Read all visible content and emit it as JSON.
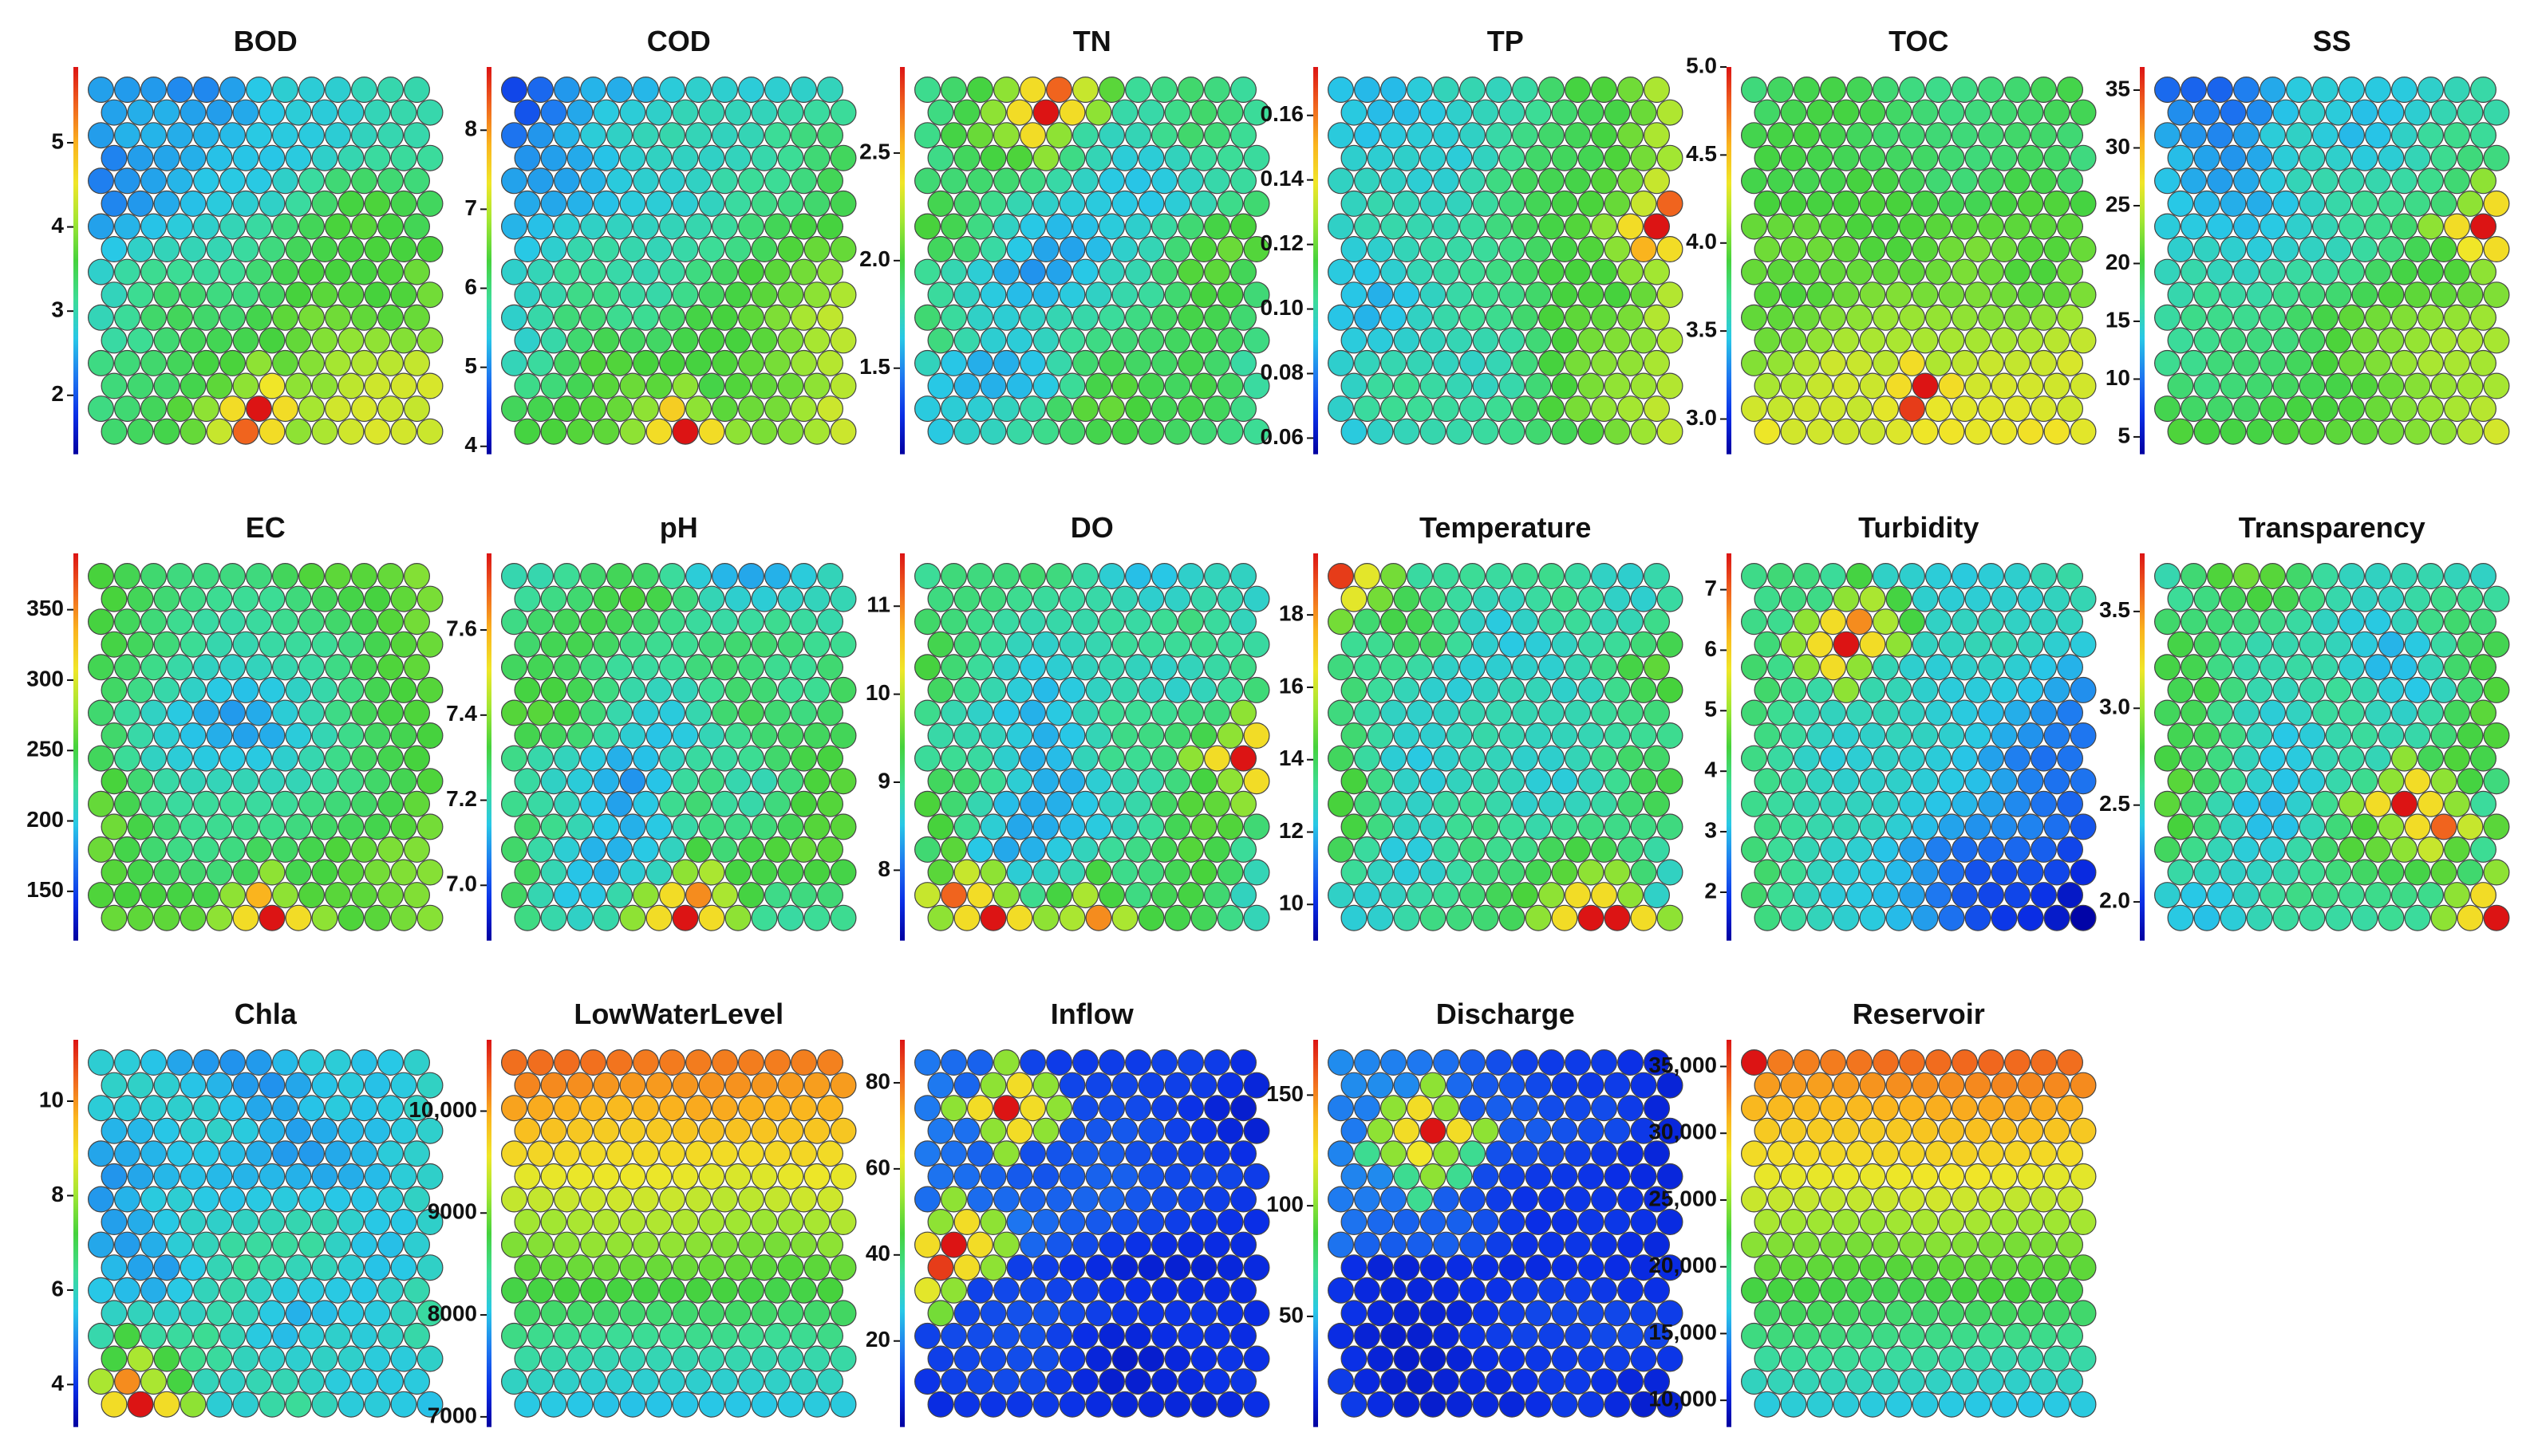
{
  "colormap": [
    "#0000a0",
    "#0a2ee6",
    "#1e78f0",
    "#28c8e6",
    "#3cdc96",
    "#46d23c",
    "#a0e632",
    "#f0e628",
    "#fab41e",
    "#f0641e",
    "#dc1414"
  ],
  "chart_data": [
    {
      "type": "heatmap",
      "title": "BOD",
      "ticks": [
        {
          "value": 2,
          "label": "2"
        },
        {
          "value": 3,
          "label": "3"
        },
        {
          "value": 4,
          "label": "4"
        },
        {
          "value": 5,
          "label": "5"
        }
      ],
      "range": [
        1.3,
        5.9
      ],
      "grid": {
        "rows": 16,
        "cols": 13
      },
      "pattern": "topleft-low",
      "hotspots": [
        {
          "row": 14,
          "col": 6,
          "level": 1.0
        },
        {
          "row": 15,
          "col": 5,
          "level": 0.9
        },
        {
          "row": 13,
          "col": 6,
          "level": 0.7
        }
      ]
    },
    {
      "type": "heatmap",
      "title": "COD",
      "ticks": [
        {
          "value": 4,
          "label": "4"
        },
        {
          "value": 5,
          "label": "5"
        },
        {
          "value": 6,
          "label": "6"
        },
        {
          "value": 7,
          "label": "7"
        },
        {
          "value": 8,
          "label": "8"
        }
      ],
      "range": [
        3.9,
        8.8
      ],
      "grid": {
        "rows": 16,
        "cols": 13
      },
      "pattern": "topleft-low",
      "hotspots": [
        {
          "row": 15,
          "col": 6,
          "level": 1.0
        },
        {
          "row": 14,
          "col": 6,
          "level": 0.75
        }
      ]
    },
    {
      "type": "heatmap",
      "title": "TN",
      "ticks": [
        {
          "value": 1.5,
          "label": "1.5"
        },
        {
          "value": 2.0,
          "label": "2.0"
        },
        {
          "value": 2.5,
          "label": "2.5"
        }
      ],
      "range": [
        1.1,
        2.9
      ],
      "grid": {
        "rows": 16,
        "cols": 13
      },
      "pattern": "mixed-mid",
      "hotspots": [
        {
          "row": 0,
          "col": 5,
          "level": 0.9
        },
        {
          "row": 1,
          "col": 4,
          "level": 1.0
        }
      ]
    },
    {
      "type": "heatmap",
      "title": "TP",
      "ticks": [
        {
          "value": 0.06,
          "label": "0.06"
        },
        {
          "value": 0.08,
          "label": "0.08"
        },
        {
          "value": 0.1,
          "label": "0.10"
        },
        {
          "value": 0.12,
          "label": "0.12"
        },
        {
          "value": 0.14,
          "label": "0.14"
        },
        {
          "value": 0.16,
          "label": "0.16"
        }
      ],
      "range": [
        0.055,
        0.175
      ],
      "grid": {
        "rows": 16,
        "cols": 13
      },
      "pattern": "right-high",
      "hotspots": [
        {
          "row": 6,
          "col": 12,
          "level": 1.0
        },
        {
          "row": 7,
          "col": 11,
          "level": 0.8
        },
        {
          "row": 5,
          "col": 12,
          "level": 0.9
        }
      ]
    },
    {
      "type": "heatmap",
      "title": "TOC",
      "ticks": [
        {
          "value": 3.0,
          "label": "3.0"
        },
        {
          "value": 3.5,
          "label": "3.5"
        },
        {
          "value": 4.0,
          "label": "4.0"
        },
        {
          "value": 4.5,
          "label": "4.5"
        },
        {
          "value": 5.0,
          "label": "5.0"
        }
      ],
      "range": [
        2.8,
        5.0
      ],
      "grid": {
        "rows": 16,
        "cols": 13
      },
      "pattern": "bottom-high",
      "hotspots": [
        {
          "row": 13,
          "col": 6,
          "level": 1.0
        },
        {
          "row": 14,
          "col": 6,
          "level": 0.95
        }
      ]
    },
    {
      "type": "heatmap",
      "title": "SS",
      "ticks": [
        {
          "value": 5,
          "label": "5"
        },
        {
          "value": 10,
          "label": "10"
        },
        {
          "value": 15,
          "label": "15"
        },
        {
          "value": 20,
          "label": "20"
        },
        {
          "value": 25,
          "label": "25"
        },
        {
          "value": 30,
          "label": "30"
        },
        {
          "value": 35,
          "label": "35"
        }
      ],
      "range": [
        3.5,
        37
      ],
      "grid": {
        "rows": 16,
        "cols": 13
      },
      "pattern": "topleft-low",
      "hotspots": [
        {
          "row": 6,
          "col": 12,
          "level": 1.0
        },
        {
          "row": 7,
          "col": 11,
          "level": 0.7
        }
      ]
    },
    {
      "type": "heatmap",
      "title": "EC",
      "ticks": [
        {
          "value": 150,
          "label": "150"
        },
        {
          "value": 200,
          "label": "200"
        },
        {
          "value": 250,
          "label": "250"
        },
        {
          "value": 300,
          "label": "300"
        },
        {
          "value": 350,
          "label": "350"
        }
      ],
      "range": [
        115,
        390
      ],
      "grid": {
        "rows": 16,
        "cols": 13
      },
      "pattern": "center-low",
      "hotspots": [
        {
          "row": 15,
          "col": 6,
          "level": 1.0
        },
        {
          "row": 14,
          "col": 6,
          "level": 0.8
        }
      ]
    },
    {
      "type": "heatmap",
      "title": "pH",
      "ticks": [
        {
          "value": 7.0,
          "label": "7.0"
        },
        {
          "value": 7.2,
          "label": "7.2"
        },
        {
          "value": 7.4,
          "label": "7.4"
        },
        {
          "value": 7.6,
          "label": "7.6"
        }
      ],
      "range": [
        6.87,
        7.78
      ],
      "grid": {
        "rows": 16,
        "cols": 13
      },
      "pattern": "mixed-mid",
      "hotspots": [
        {
          "row": 15,
          "col": 6,
          "level": 1.0
        },
        {
          "row": 14,
          "col": 7,
          "level": 0.85
        }
      ]
    },
    {
      "type": "heatmap",
      "title": "DO",
      "ticks": [
        {
          "value": 8,
          "label": "8"
        },
        {
          "value": 9,
          "label": "9"
        },
        {
          "value": 10,
          "label": "10"
        },
        {
          "value": 11,
          "label": "11"
        }
      ],
      "range": [
        7.2,
        11.6
      ],
      "grid": {
        "rows": 16,
        "cols": 13
      },
      "pattern": "mixed-mid",
      "hotspots": [
        {
          "row": 8,
          "col": 12,
          "level": 1.0
        },
        {
          "row": 15,
          "col": 2,
          "level": 1.0
        },
        {
          "row": 14,
          "col": 1,
          "level": 0.9
        },
        {
          "row": 15,
          "col": 6,
          "level": 0.85
        }
      ]
    },
    {
      "type": "heatmap",
      "title": "Temperature",
      "ticks": [
        {
          "value": 10,
          "label": "10"
        },
        {
          "value": 12,
          "label": "12"
        },
        {
          "value": 14,
          "label": "14"
        },
        {
          "value": 16,
          "label": "16"
        },
        {
          "value": 18,
          "label": "18"
        }
      ],
      "range": [
        9,
        19.7
      ],
      "grid": {
        "rows": 16,
        "cols": 13
      },
      "pattern": "mixed-mid",
      "hotspots": [
        {
          "row": 15,
          "col": 9,
          "level": 1.0
        },
        {
          "row": 15,
          "col": 10,
          "level": 1.0
        },
        {
          "row": 0,
          "col": 0,
          "level": 0.95
        }
      ]
    },
    {
      "type": "heatmap",
      "title": "Turbidity",
      "ticks": [
        {
          "value": 2,
          "label": "2"
        },
        {
          "value": 3,
          "label": "3"
        },
        {
          "value": 4,
          "label": "4"
        },
        {
          "value": 5,
          "label": "5"
        },
        {
          "value": 6,
          "label": "6"
        },
        {
          "value": 7,
          "label": "7"
        }
      ],
      "range": [
        1.2,
        7.6
      ],
      "grid": {
        "rows": 16,
        "cols": 13
      },
      "pattern": "right-low",
      "hotspots": [
        {
          "row": 3,
          "col": 3,
          "level": 1.0
        },
        {
          "row": 2,
          "col": 4,
          "level": 0.85
        }
      ]
    },
    {
      "type": "heatmap",
      "title": "Transparency",
      "ticks": [
        {
          "value": 2.0,
          "label": "2.0"
        },
        {
          "value": 2.5,
          "label": "2.5"
        },
        {
          "value": 3.0,
          "label": "3.0"
        },
        {
          "value": 3.5,
          "label": "3.5"
        }
      ],
      "range": [
        1.8,
        3.8
      ],
      "grid": {
        "rows": 16,
        "cols": 13
      },
      "pattern": "mixed-mid",
      "hotspots": [
        {
          "row": 10,
          "col": 9,
          "level": 1.0
        },
        {
          "row": 11,
          "col": 10,
          "level": 0.9
        },
        {
          "row": 15,
          "col": 12,
          "level": 1.0
        }
      ]
    },
    {
      "type": "heatmap",
      "title": "Chla",
      "ticks": [
        {
          "value": 4,
          "label": "4"
        },
        {
          "value": 6,
          "label": "6"
        },
        {
          "value": 8,
          "label": "8"
        },
        {
          "value": 10,
          "label": "10"
        }
      ],
      "range": [
        3.1,
        11.3
      ],
      "grid": {
        "rows": 16,
        "cols": 13
      },
      "pattern": "mixed-low",
      "hotspots": [
        {
          "row": 15,
          "col": 1,
          "level": 1.0
        },
        {
          "row": 14,
          "col": 1,
          "level": 0.85
        }
      ]
    },
    {
      "type": "heatmap",
      "title": "LowWaterLevel",
      "ticks": [
        {
          "value": 7000,
          "label": "7000"
        },
        {
          "value": 8000,
          "label": "8000"
        },
        {
          "value": 9000,
          "label": "9000"
        },
        {
          "value": 10000,
          "label": "10,000"
        }
      ],
      "range": [
        6900,
        10700
      ],
      "grid": {
        "rows": 16,
        "cols": 13
      },
      "pattern": "top-high",
      "hotspots": []
    },
    {
      "type": "heatmap",
      "title": "Inflow",
      "ticks": [
        {
          "value": 20,
          "label": "20"
        },
        {
          "value": 40,
          "label": "40"
        },
        {
          "value": 60,
          "label": "60"
        },
        {
          "value": 80,
          "label": "80"
        }
      ],
      "range": [
        0,
        90
      ],
      "grid": {
        "rows": 16,
        "cols": 13
      },
      "pattern": "mostly-low",
      "hotspots": [
        {
          "row": 2,
          "col": 3,
          "level": 1.0
        },
        {
          "row": 8,
          "col": 1,
          "level": 1.0
        },
        {
          "row": 9,
          "col": 0,
          "level": 0.95
        }
      ]
    },
    {
      "type": "heatmap",
      "title": "Discharge",
      "ticks": [
        {
          "value": 50,
          "label": "50"
        },
        {
          "value": 100,
          "label": "100"
        },
        {
          "value": 150,
          "label": "150"
        }
      ],
      "range": [
        0,
        175
      ],
      "grid": {
        "rows": 16,
        "cols": 13
      },
      "pattern": "mostly-low",
      "hotspots": [
        {
          "row": 3,
          "col": 3,
          "level": 1.0
        },
        {
          "row": 4,
          "col": 3,
          "level": 0.7
        }
      ]
    },
    {
      "type": "heatmap",
      "title": "Reservoir",
      "ticks": [
        {
          "value": 10000,
          "label": "10,000"
        },
        {
          "value": 15000,
          "label": "15,000"
        },
        {
          "value": 20000,
          "label": "20,000"
        },
        {
          "value": 25000,
          "label": "25,000"
        },
        {
          "value": 30000,
          "label": "30,000"
        },
        {
          "value": 35000,
          "label": "35,000"
        }
      ],
      "range": [
        8000,
        37000
      ],
      "grid": {
        "rows": 16,
        "cols": 13
      },
      "pattern": "top-high",
      "hotspots": [
        {
          "row": 0,
          "col": 0,
          "level": 1.0
        }
      ]
    }
  ]
}
